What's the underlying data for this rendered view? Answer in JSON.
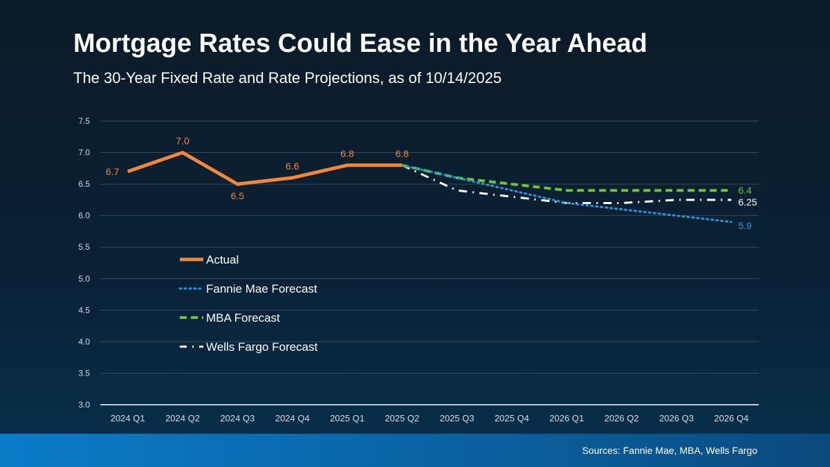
{
  "title": "Mortgage Rates Could Ease in the Year Ahead",
  "subtitle": "The 30-Year Fixed Rate and Rate Projections, as of 10/14/2025",
  "sources": "Sources: Fannie Mae, MBA, Wells Fargo",
  "chart_data": {
    "type": "line",
    "categories": [
      "2024 Q1",
      "2024 Q2",
      "2024 Q3",
      "2024 Q4",
      "2025 Q1",
      "2025 Q2",
      "2025 Q3",
      "2025 Q4",
      "2026 Q1",
      "2026 Q2",
      "2026 Q3",
      "2026 Q4"
    ],
    "ylim": [
      3.0,
      7.5
    ],
    "yticks": [
      "3.0",
      "3.5",
      "4.0",
      "4.5",
      "5.0",
      "5.5",
      "6.0",
      "6.5",
      "7.0",
      "7.5"
    ],
    "grid": true,
    "legend_placement": "center-left",
    "series": [
      {
        "name": "Actual",
        "color": "#f0873a",
        "style": "solid",
        "values": [
          6.7,
          7.0,
          6.5,
          6.6,
          6.8,
          6.8,
          null,
          null,
          null,
          null,
          null,
          null
        ],
        "labels": [
          "6.7",
          "7.0",
          "6.5",
          "6.6",
          "6.8",
          "6.8"
        ]
      },
      {
        "name": "Fannie Mae Forecast",
        "color": "#1f9be0",
        "style": "dotted",
        "values": [
          null,
          null,
          null,
          null,
          null,
          6.8,
          6.6,
          6.4,
          6.2,
          6.1,
          6.0,
          5.9
        ],
        "end_label": "5.9"
      },
      {
        "name": "MBA Forecast",
        "color": "#6cc533",
        "style": "dashed",
        "values": [
          null,
          null,
          null,
          null,
          null,
          6.8,
          6.6,
          6.5,
          6.4,
          6.4,
          6.4,
          6.4
        ],
        "end_label": "6.4"
      },
      {
        "name": "Wells Fargo Forecast",
        "color": "#ffffff",
        "style": "dashdot",
        "values": [
          null,
          null,
          null,
          null,
          null,
          6.8,
          6.4,
          6.3,
          6.2,
          6.2,
          6.25,
          6.25
        ],
        "end_label": "6.25"
      }
    ]
  }
}
